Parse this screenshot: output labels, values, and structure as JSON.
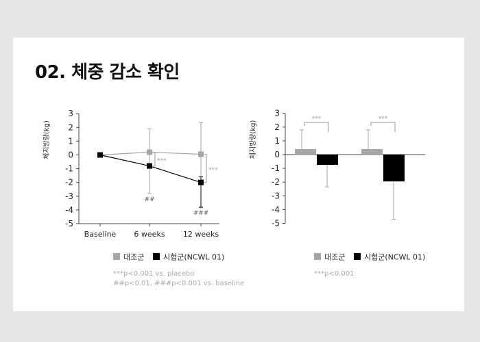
{
  "title": "02. 체중 감소 확인",
  "colors": {
    "placebo": "#a6a6a6",
    "treatment": "#000000",
    "axis": "#444444",
    "note": "#aaaaaa",
    "annot": "#999999"
  },
  "chart_data": [
    {
      "type": "line",
      "ylabel": "체지방량(kg)",
      "xlabel": "",
      "ylim": [
        -5,
        3
      ],
      "yticks": [
        "3",
        "2",
        "1",
        "0",
        "-1",
        "-2",
        "-3",
        "-4",
        "-5"
      ],
      "categories": [
        "Baseline",
        "6 weeks",
        "12 weeks"
      ],
      "series": [
        {
          "name": "대조군",
          "values": [
            0,
            0.2,
            0.05
          ],
          "err_up": [
            0,
            1.7,
            2.3
          ],
          "err_down": [
            0,
            3.0,
            3.9
          ]
        },
        {
          "name": "시험군(NCWL 01)",
          "values": [
            0,
            -0.8,
            -2.0
          ],
          "err_up": [
            0,
            0,
            0.4
          ],
          "err_down": [
            0,
            0,
            1.8
          ]
        }
      ],
      "sig_brackets": [
        "***",
        "***"
      ],
      "point_labels": [
        "##",
        "###"
      ],
      "legend": [
        "대조군",
        "시험군(NCWL 01)"
      ],
      "notes": [
        "***p<0.001 vs. placebo",
        "##p<0.01, ###p<0.001 vs. baseline"
      ]
    },
    {
      "type": "bar",
      "ylabel": "체지방량(kg)",
      "ylim": [
        -5,
        3
      ],
      "yticks": [
        "3",
        "2",
        "1",
        "0",
        "-1",
        "-2",
        "-3",
        "-4",
        "-5"
      ],
      "categories": [
        "",
        ""
      ],
      "series": [
        {
          "name": "대조군",
          "values": [
            0.4,
            0.4
          ],
          "err": [
            1.4,
            1.4
          ]
        },
        {
          "name": "시험군(NCWL 01)",
          "values": [
            -0.75,
            -1.95
          ],
          "err": [
            1.6,
            2.75
          ]
        }
      ],
      "sig_brackets": [
        "***",
        "***"
      ],
      "legend": [
        "대조군",
        "시험군(NCWL 01)"
      ],
      "notes": [
        "***p<0.001"
      ]
    }
  ]
}
